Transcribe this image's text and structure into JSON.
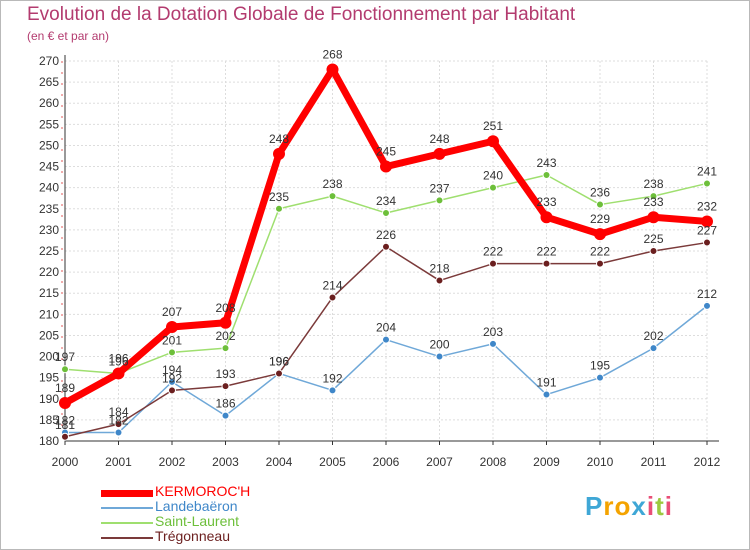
{
  "title": "Evolution de la Dotation Globale de Fonctionnement par Habitant",
  "subtitle": "(en € et par an)",
  "brand": {
    "letters": [
      "P",
      "r",
      "o",
      "x",
      "i",
      "t",
      "i"
    ],
    "colors": [
      "#3fa7d6",
      "#f4a300",
      "#f4a300",
      "#3fa7d6",
      "#e94e77",
      "#9cc93f",
      "#e94e77"
    ]
  },
  "chart_data": {
    "type": "line",
    "title": "Evolution de la Dotation Globale de Fonctionnement par Habitant",
    "xlabel": "",
    "ylabel": "(en € et par an)",
    "x": [
      "2000",
      "2001",
      "2002",
      "2003",
      "2004",
      "2005",
      "2006",
      "2007",
      "2008",
      "2009",
      "2010",
      "2011",
      "2012"
    ],
    "ylim": [
      180,
      270
    ],
    "yticks": [
      "180",
      "185",
      "190",
      "195",
      "200",
      "205",
      "210",
      "215",
      "220",
      "225",
      "230",
      "235",
      "240",
      "245",
      "250",
      "255",
      "260",
      "265",
      "270"
    ],
    "grid": true,
    "legend_position": "bottom-left",
    "series": [
      {
        "name": "KERMOROC'H",
        "color": "#ff0000",
        "dot": "#ff0000",
        "values": [
          189,
          196,
          207,
          208,
          248,
          268,
          245,
          248,
          251,
          233,
          229,
          233,
          232
        ],
        "labels": [
          "189",
          "196",
          "207",
          "208",
          "248",
          "268",
          "245",
          "248",
          "251",
          "233",
          "229",
          "233",
          "232"
        ]
      },
      {
        "name": "Landebaëron",
        "color": "#6fa8d8",
        "dot": "#3f87c9",
        "values": [
          182,
          182,
          194,
          186,
          196,
          192,
          204,
          200,
          203,
          191,
          195,
          202,
          212
        ],
        "labels": [
          "182",
          "182",
          "194",
          "186",
          "196",
          "192",
          "204",
          "200",
          "203",
          "191",
          "195",
          "202",
          "212"
        ]
      },
      {
        "name": "Saint-Laurent",
        "color": "#9fdf6f",
        "dot": "#6dbf3a",
        "values": [
          197,
          196,
          201,
          202,
          235,
          238,
          234,
          237,
          240,
          243,
          236,
          238,
          241
        ],
        "labels": [
          "197",
          "196",
          "201",
          "202",
          "235",
          "238",
          "234",
          "237",
          "240",
          "243",
          "236",
          "238",
          "241"
        ]
      },
      {
        "name": "Trégonneau",
        "color": "#7b3a3a",
        "dot": "#6b1f1f",
        "values": [
          181,
          184,
          192,
          193,
          196,
          214,
          226,
          218,
          222,
          222,
          222,
          225,
          227
        ],
        "labels": [
          "181",
          "184",
          "192",
          "193",
          "196",
          "214",
          "226",
          "218",
          "222",
          "222",
          "222",
          "225",
          "227"
        ]
      }
    ]
  }
}
